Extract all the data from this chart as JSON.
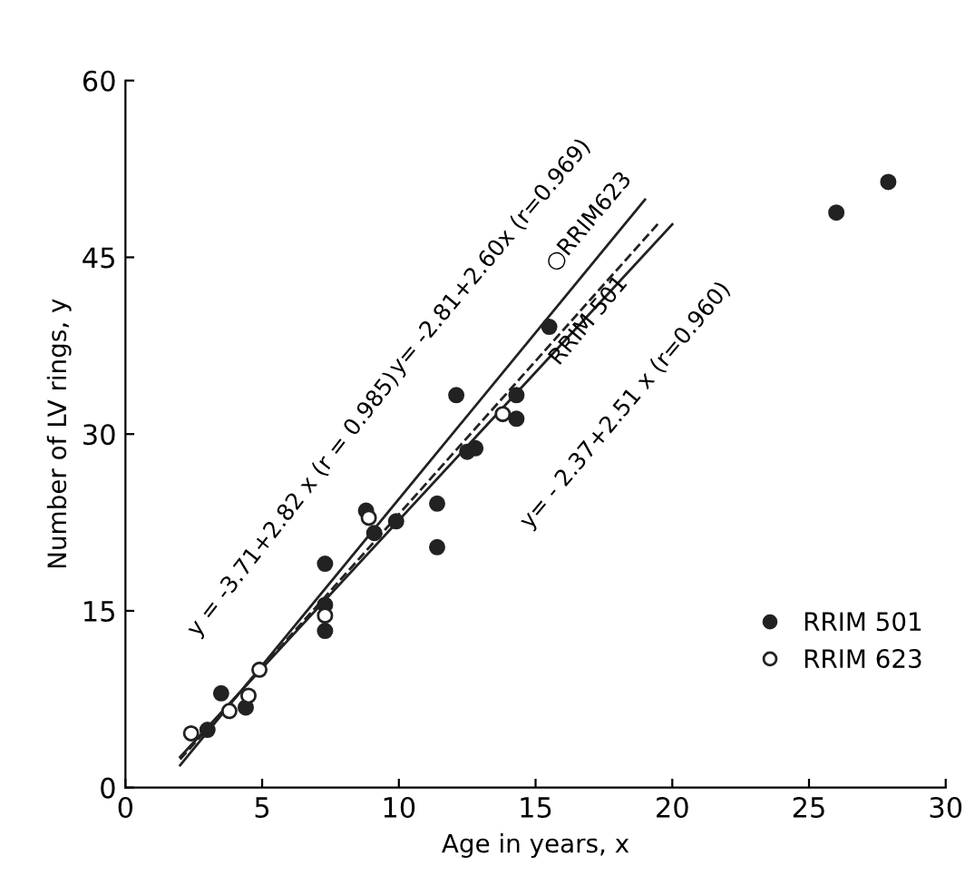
{
  "chart_data": {
    "type": "scatter",
    "xlabel": "Age in years, x",
    "ylabel": "Number of LV rings, y",
    "xlim": [
      0,
      30
    ],
    "ylim": [
      0,
      60
    ],
    "xticks": [
      0,
      5,
      10,
      15,
      20,
      25,
      30
    ],
    "yticks": [
      0,
      15,
      30,
      45,
      60
    ],
    "grid": false,
    "legend": "bottom right",
    "marker": "circle",
    "series": [
      {
        "name": "RRIM 501",
        "color": "#222222",
        "x": [
          3.0,
          3.5,
          4.4,
          7.3,
          7.3,
          7.3,
          8.8,
          9.1,
          9.9,
          11.4,
          11.4,
          12.1,
          12.5,
          12.8,
          14.3,
          14.3,
          15.5,
          26.0,
          27.9
        ],
        "values": [
          4.9,
          8.0,
          6.8,
          19.0,
          15.5,
          13.3,
          23.5,
          21.6,
          22.6,
          24.1,
          20.4,
          33.3,
          28.5,
          28.8,
          33.3,
          31.3,
          39.1,
          48.8,
          51.4
        ]
      },
      {
        "name": "RRIM 623",
        "color": "#222222",
        "x": [
          2.4,
          3.8,
          4.5,
          4.9,
          7.3,
          8.9,
          13.8
        ],
        "values": [
          4.6,
          6.5,
          7.8,
          10.0,
          14.6,
          22.9,
          31.7
        ]
      },
      {
        "type": "line",
        "color": "#222222",
        "line_style": "solid",
        "marker": "none",
        "x": [
          2,
          19
        ],
        "values": [
          1.9,
          49.9
        ]
      },
      {
        "type": "line",
        "color": "#222222",
        "line_style": "dashed",
        "marker": "none",
        "x": [
          2,
          19.5
        ],
        "values": [
          2.4,
          47.9
        ]
      },
      {
        "type": "line",
        "color": "#222222",
        "line_style": "solid",
        "marker": "none",
        "x": [
          2,
          20
        ],
        "values": [
          2.6,
          47.8
        ]
      }
    ],
    "annotations": [
      "y = -3.71+2.82 x (r = 0.985)",
      "y= -2.81+2.60x (r=0.969)",
      "○RRIM623",
      "RRIM 501",
      "y= - 2.37+2.51 x (r=0.960)"
    ]
  }
}
